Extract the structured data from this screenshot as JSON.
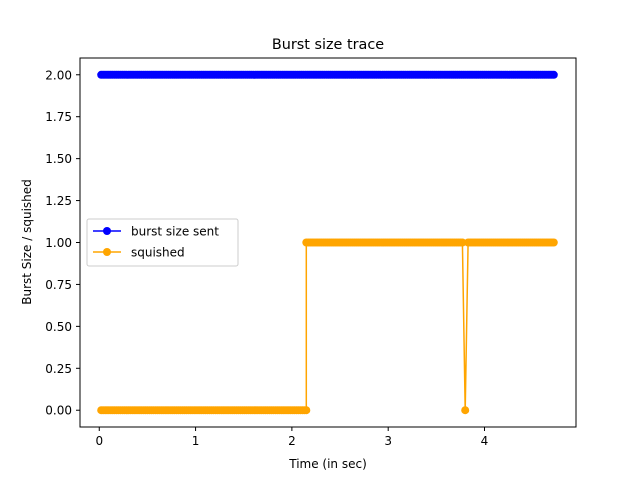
{
  "chart_data": {
    "type": "line",
    "title": "Burst size trace",
    "xlabel": "Time (in sec)",
    "ylabel": "Burst Size / squished",
    "xlim": [
      -0.2,
      4.95
    ],
    "ylim": [
      -0.1,
      2.1
    ],
    "xticks": [
      0,
      1,
      2,
      3,
      4
    ],
    "xtick_labels": [
      "0",
      "1",
      "2",
      "3",
      "4"
    ],
    "yticks": [
      0.0,
      0.25,
      0.5,
      0.75,
      1.0,
      1.25,
      1.5,
      1.75,
      2.0
    ],
    "ytick_labels": [
      "0.00",
      "0.25",
      "0.50",
      "0.75",
      "1.00",
      "1.25",
      "1.50",
      "1.75",
      "2.00"
    ],
    "grid": false,
    "legend_position": "center-left",
    "series": [
      {
        "name": "burst size sent",
        "color": "#0000ff",
        "marker": "circle",
        "segments": [
          {
            "x_start": 0.02,
            "x_end": 4.72,
            "y": 2.0
          }
        ]
      },
      {
        "name": "squished",
        "color": "#ffa500",
        "marker": "circle",
        "segments": [
          {
            "x_start": 0.02,
            "x_end": 2.15,
            "y": 0.0
          },
          {
            "x_start": 2.15,
            "x_end": 3.77,
            "y": 1.0
          },
          {
            "x_start": 3.8,
            "x_end": 3.8,
            "y": 0.0
          },
          {
            "x_start": 3.83,
            "x_end": 4.72,
            "y": 1.0
          }
        ]
      }
    ]
  }
}
